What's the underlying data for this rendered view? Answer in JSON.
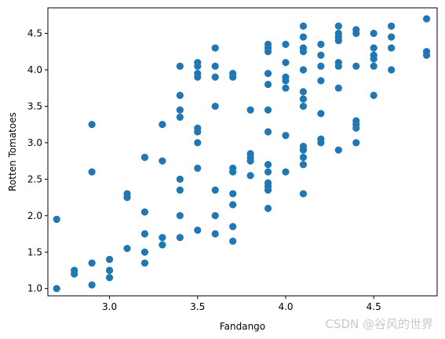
{
  "chart_data": {
    "type": "scatter",
    "xlabel": "Fandango",
    "ylabel": "Rotten Tomatoes",
    "xlim": [
      2.65,
      4.86
    ],
    "ylim": [
      0.9,
      4.85
    ],
    "xticks": [
      "3.0",
      "3.5",
      "4.0",
      "4.5"
    ],
    "xtick_values": [
      3.0,
      3.5,
      4.0,
      4.5
    ],
    "yticks": [
      "1.0",
      "1.5",
      "2.0",
      "2.5",
      "3.0",
      "3.5",
      "4.0",
      "4.5"
    ],
    "ytick_values": [
      1.0,
      1.5,
      2.0,
      2.5,
      3.0,
      3.5,
      4.0,
      4.5
    ],
    "grid": false,
    "marker_color": "#1f77b4",
    "points": [
      [
        2.7,
        1.95
      ],
      [
        2.7,
        1.0
      ],
      [
        2.8,
        1.25
      ],
      [
        2.8,
        1.2
      ],
      [
        2.9,
        3.25
      ],
      [
        2.9,
        2.6
      ],
      [
        2.9,
        1.35
      ],
      [
        2.9,
        1.05
      ],
      [
        3.0,
        1.4
      ],
      [
        3.0,
        1.25
      ],
      [
        3.0,
        1.15
      ],
      [
        3.1,
        2.3
      ],
      [
        3.1,
        2.25
      ],
      [
        3.1,
        1.55
      ],
      [
        3.2,
        2.8
      ],
      [
        3.2,
        2.05
      ],
      [
        3.2,
        1.75
      ],
      [
        3.2,
        1.5
      ],
      [
        3.2,
        1.35
      ],
      [
        3.3,
        3.25
      ],
      [
        3.3,
        2.75
      ],
      [
        3.3,
        1.7
      ],
      [
        3.3,
        1.6
      ],
      [
        3.4,
        4.05
      ],
      [
        3.4,
        3.65
      ],
      [
        3.4,
        3.45
      ],
      [
        3.4,
        3.35
      ],
      [
        3.4,
        2.5
      ],
      [
        3.4,
        2.35
      ],
      [
        3.4,
        2.0
      ],
      [
        3.4,
        1.7
      ],
      [
        3.5,
        4.1
      ],
      [
        3.5,
        4.05
      ],
      [
        3.5,
        3.95
      ],
      [
        3.5,
        3.9
      ],
      [
        3.5,
        3.2
      ],
      [
        3.5,
        3.15
      ],
      [
        3.5,
        3.0
      ],
      [
        3.5,
        2.65
      ],
      [
        3.5,
        1.8
      ],
      [
        3.6,
        4.3
      ],
      [
        3.6,
        4.05
      ],
      [
        3.6,
        3.9
      ],
      [
        3.6,
        3.5
      ],
      [
        3.6,
        2.35
      ],
      [
        3.6,
        2.0
      ],
      [
        3.6,
        1.75
      ],
      [
        3.7,
        3.95
      ],
      [
        3.7,
        3.9
      ],
      [
        3.7,
        2.65
      ],
      [
        3.7,
        2.6
      ],
      [
        3.7,
        2.3
      ],
      [
        3.7,
        2.15
      ],
      [
        3.7,
        1.85
      ],
      [
        3.7,
        1.65
      ],
      [
        3.8,
        3.45
      ],
      [
        3.8,
        2.85
      ],
      [
        3.8,
        2.8
      ],
      [
        3.8,
        2.75
      ],
      [
        3.8,
        2.55
      ],
      [
        3.9,
        4.35
      ],
      [
        3.9,
        4.3
      ],
      [
        3.9,
        4.25
      ],
      [
        3.9,
        3.95
      ],
      [
        3.9,
        3.8
      ],
      [
        3.9,
        3.45
      ],
      [
        3.9,
        3.15
      ],
      [
        3.9,
        2.7
      ],
      [
        3.9,
        2.6
      ],
      [
        3.9,
        2.45
      ],
      [
        3.9,
        2.4
      ],
      [
        3.9,
        2.35
      ],
      [
        3.9,
        2.1
      ],
      [
        4.0,
        4.35
      ],
      [
        4.0,
        4.1
      ],
      [
        4.0,
        3.9
      ],
      [
        4.0,
        3.85
      ],
      [
        4.0,
        3.75
      ],
      [
        4.0,
        3.1
      ],
      [
        4.0,
        2.6
      ],
      [
        4.1,
        4.6
      ],
      [
        4.1,
        4.45
      ],
      [
        4.1,
        4.3
      ],
      [
        4.1,
        4.25
      ],
      [
        4.1,
        4.0
      ],
      [
        4.1,
        3.7
      ],
      [
        4.1,
        3.6
      ],
      [
        4.1,
        3.5
      ],
      [
        4.1,
        2.95
      ],
      [
        4.1,
        2.9
      ],
      [
        4.1,
        2.8
      ],
      [
        4.1,
        2.7
      ],
      [
        4.1,
        2.3
      ],
      [
        4.2,
        4.35
      ],
      [
        4.2,
        4.2
      ],
      [
        4.2,
        4.05
      ],
      [
        4.2,
        3.85
      ],
      [
        4.2,
        3.4
      ],
      [
        4.2,
        3.05
      ],
      [
        4.2,
        3.0
      ],
      [
        4.3,
        4.6
      ],
      [
        4.3,
        4.5
      ],
      [
        4.3,
        4.45
      ],
      [
        4.3,
        4.4
      ],
      [
        4.3,
        4.1
      ],
      [
        4.3,
        4.05
      ],
      [
        4.3,
        3.75
      ],
      [
        4.3,
        2.9
      ],
      [
        4.4,
        4.55
      ],
      [
        4.4,
        4.5
      ],
      [
        4.4,
        4.05
      ],
      [
        4.4,
        3.3
      ],
      [
        4.4,
        3.25
      ],
      [
        4.4,
        3.2
      ],
      [
        4.4,
        3.0
      ],
      [
        4.5,
        4.5
      ],
      [
        4.5,
        4.3
      ],
      [
        4.5,
        4.2
      ],
      [
        4.5,
        4.15
      ],
      [
        4.5,
        4.05
      ],
      [
        4.5,
        3.65
      ],
      [
        4.6,
        4.6
      ],
      [
        4.6,
        4.45
      ],
      [
        4.6,
        4.3
      ],
      [
        4.6,
        4.0
      ],
      [
        4.8,
        4.7
      ],
      [
        4.8,
        4.25
      ],
      [
        4.8,
        4.2
      ]
    ]
  },
  "watermark": "CSDN @谷风的世界"
}
